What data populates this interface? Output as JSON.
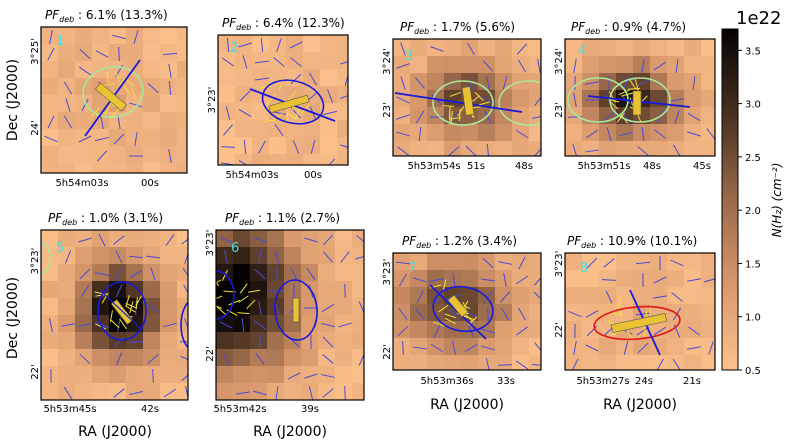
{
  "chart_data": [
    {
      "type": "heatmap",
      "id": 1,
      "title_main": "PF",
      "title_sub": "deb",
      "title_rest": " : 6.1% (13.3%)",
      "panel_label": "1",
      "y_ticks": [
        "3°25'",
        "24'"
      ],
      "x_ticks": [
        "5h54m03s",
        "00s"
      ]
    },
    {
      "type": "heatmap",
      "id": 2,
      "title_main": "PF",
      "title_sub": "deb",
      "title_rest": " : 6.4% (12.3%)",
      "panel_label": "2",
      "y_ticks": [
        "3°23'"
      ],
      "x_ticks": [
        "5h54m03s",
        "00s"
      ]
    },
    {
      "type": "heatmap",
      "id": 3,
      "title_main": "PF",
      "title_sub": "deb",
      "title_rest": " : 1.7% (5.6%)",
      "panel_label": "3",
      "y_ticks": [
        "3°24'",
        "23'"
      ],
      "x_ticks": [
        "5h53m54s",
        "51s",
        "48s"
      ]
    },
    {
      "type": "heatmap",
      "id": 4,
      "title_main": "PF",
      "title_sub": "deb",
      "title_rest": " : 0.9% (4.7%)",
      "panel_label": "4",
      "y_ticks": [
        "3°24'",
        "23'"
      ],
      "x_ticks": [
        "5h53m51s",
        "48s",
        "45s"
      ]
    },
    {
      "type": "heatmap",
      "id": 5,
      "title_main": "PF",
      "title_sub": "deb",
      "title_rest": " : 1.0% (3.1%)",
      "panel_label": "5",
      "y_ticks": [
        "3°23'",
        "22'"
      ],
      "x_ticks": [
        "5h53m45s",
        "42s"
      ]
    },
    {
      "type": "heatmap",
      "id": 6,
      "title_main": "PF",
      "title_sub": "deb",
      "title_rest": " : 1.1% (2.7%)",
      "panel_label": "6",
      "y_ticks": [
        "3°23'",
        "22'"
      ],
      "x_ticks": [
        "5h53m42s",
        "39s"
      ]
    },
    {
      "type": "heatmap",
      "id": 7,
      "title_main": "PF",
      "title_sub": "deb",
      "title_rest": " : 1.2% (3.4%)",
      "panel_label": "7",
      "y_ticks": [
        "3°23'",
        "22'"
      ],
      "x_ticks": [
        "5h53m36s",
        "33s"
      ]
    },
    {
      "type": "heatmap",
      "id": 8,
      "title_main": "PF",
      "title_sub": "deb",
      "title_rest": " : 10.9% (10.1%)",
      "panel_label": "8",
      "y_ticks": [
        "3°23'",
        "22'"
      ],
      "x_ticks": [
        "5h53m27s",
        "24s",
        "21s"
      ]
    }
  ],
  "axes": {
    "ylabel": "Dec (J2000)",
    "xlabel": "RA (J2000)"
  },
  "colorbar": {
    "label": "N(H2) (cm^-2)",
    "label_display": "N(H₂) (cm⁻²)",
    "scale_note": "1e22",
    "range": [
      0.5,
      3.7
    ],
    "ticks": [
      "0.5",
      "1.0",
      "1.5",
      "2.0",
      "2.5",
      "3.0",
      "3.5"
    ],
    "tick_values": [
      0.5,
      1.0,
      1.5,
      2.0,
      2.5,
      3.0,
      3.5
    ]
  },
  "colors": {
    "cmap_low": "#fdc28c",
    "cmap_mid": "#8a5a3c",
    "cmap_high": "#0a0603",
    "ellipse_blue": "#1a1adb",
    "ellipse_green": "#a8e89a",
    "ellipse_red": "#e01818",
    "vector_yellow": "#f5e23a",
    "vector_blue": "#4a4ad8",
    "label_cyan": "#40e0e0"
  }
}
